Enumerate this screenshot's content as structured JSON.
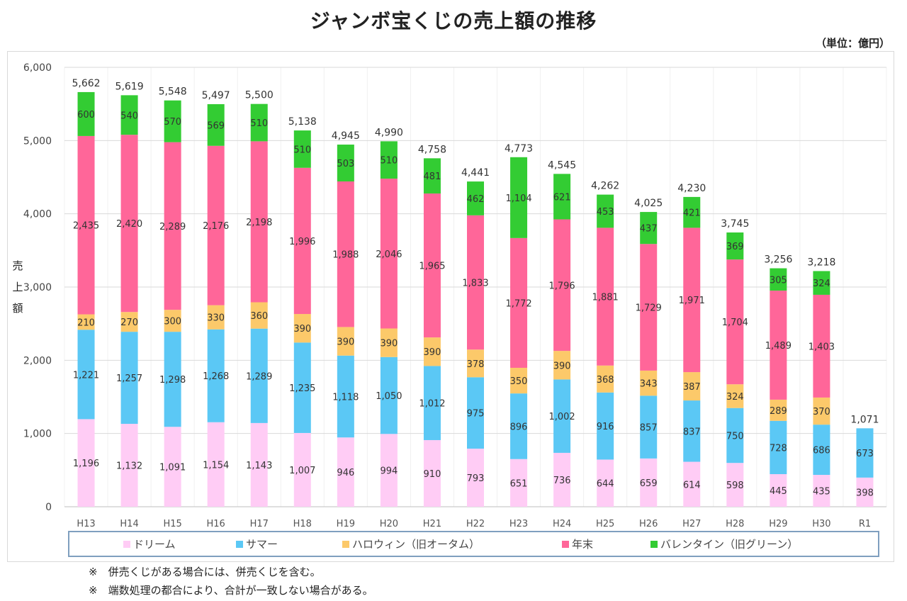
{
  "chart_data": {
    "type": "bar",
    "stacked": true,
    "title": "ジャンボ宝くじの売上額の推移",
    "unit_note": "（単位：億円）",
    "ylabel": "売上額",
    "xlabel": "",
    "ylim": [
      0,
      6000
    ],
    "yticks": [
      0,
      1000,
      2000,
      3000,
      4000,
      5000,
      6000
    ],
    "ytick_labels": [
      "0",
      "1,000",
      "2,000",
      "3,000",
      "4,000",
      "5,000",
      "6,000"
    ],
    "grid": true,
    "legend_position": "bottom",
    "categories": [
      "H13",
      "H14",
      "H15",
      "H16",
      "H17",
      "H18",
      "H19",
      "H20",
      "H21",
      "H22",
      "H23",
      "H24",
      "H25",
      "H26",
      "H27",
      "H28",
      "H29",
      "H30",
      "R1"
    ],
    "series": [
      {
        "name": "ドリーム",
        "color": "#ffccf5",
        "values": [
          1196,
          1132,
          1091,
          1154,
          1143,
          1007,
          946,
          994,
          910,
          793,
          651,
          736,
          644,
          659,
          614,
          598,
          445,
          435,
          398
        ]
      },
      {
        "name": "サマー",
        "color": "#5bc8f5",
        "values": [
          1221,
          1257,
          1298,
          1268,
          1289,
          1235,
          1118,
          1050,
          1012,
          975,
          896,
          1002,
          916,
          857,
          837,
          750,
          728,
          686,
          673
        ]
      },
      {
        "name": "ハロウィン（旧オータム）",
        "color": "#fcc96a",
        "values": [
          210,
          270,
          300,
          330,
          360,
          390,
          390,
          390,
          390,
          378,
          350,
          390,
          368,
          343,
          387,
          324,
          289,
          370,
          null
        ]
      },
      {
        "name": "年末",
        "color": "#ff6699",
        "values": [
          2435,
          2420,
          2289,
          2176,
          2198,
          1996,
          1988,
          2046,
          1965,
          1833,
          1772,
          1796,
          1881,
          1729,
          1971,
          1704,
          1489,
          1403,
          null
        ]
      },
      {
        "name": "バレンタイン（旧グリーン）",
        "color": "#33cc33",
        "values": [
          600,
          540,
          570,
          569,
          510,
          510,
          503,
          510,
          481,
          462,
          1104,
          621,
          453,
          437,
          421,
          369,
          305,
          324,
          null
        ]
      }
    ],
    "totals": [
      5662,
      5619,
      5548,
      5497,
      5500,
      5138,
      4945,
      4990,
      4758,
      4441,
      4773,
      4545,
      4262,
      4025,
      4230,
      3745,
      3256,
      3218,
      1071
    ]
  },
  "notes": [
    "※　併売くじがある場合には、併売くじを含む。",
    "※　端数処理の都合により、合計が一致しない場合がある。"
  ]
}
